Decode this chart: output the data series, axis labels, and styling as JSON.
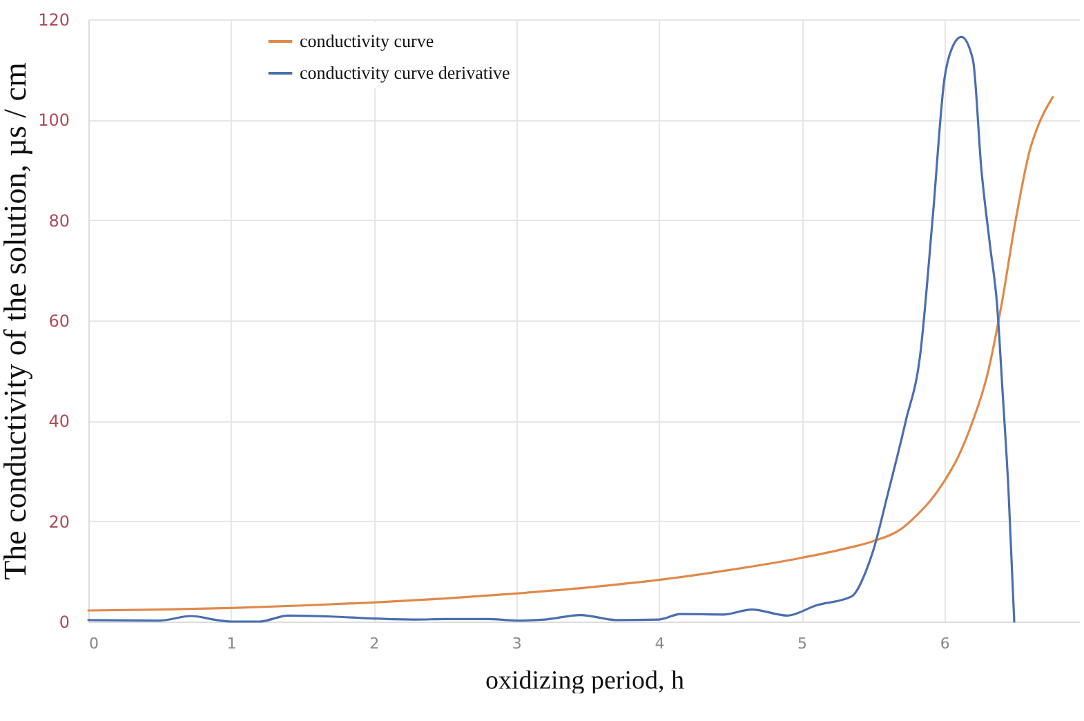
{
  "chart_data": {
    "type": "line",
    "xlabel": "oxidizing period, h",
    "ylabel": "The conductivity of the solution, µs / cm",
    "xlim": [
      0,
      6.95
    ],
    "xticks": [
      0,
      1,
      2,
      3,
      4,
      5,
      6
    ],
    "ylim": [
      0,
      120
    ],
    "yticks": [
      0,
      20,
      40,
      60,
      80,
      100,
      120
    ],
    "grid": true,
    "legend": "top left",
    "marker": "none",
    "line_style": "solid",
    "series": [
      {
        "name": "conductivity curve",
        "color": "#e0894a",
        "x": [
          0,
          0.5,
          1,
          1.5,
          2,
          2.5,
          3,
          3.5,
          4,
          4.5,
          5,
          5.3,
          5.5,
          5.7,
          5.8,
          5.9,
          6,
          6.1,
          6.2,
          6.3,
          6.4,
          6.5,
          6.6,
          6.66,
          6.76
        ],
        "values": [
          2.2,
          2.4,
          2.7,
          3.2,
          3.8,
          4.6,
          5.6,
          6.8,
          8.3,
          10.3,
          12.7,
          14.5,
          16,
          18.5,
          21,
          24,
          28,
          33,
          40,
          49,
          63,
          80,
          94,
          99,
          104.5
        ]
      },
      {
        "name": "conductivity curve derivative",
        "color": "#4a6fb0",
        "x": [
          0,
          0.5,
          0.72,
          0.9,
          1,
          1.2,
          1.4,
          1.7,
          2,
          2.3,
          2.5,
          2.8,
          3,
          3.2,
          3.45,
          3.7,
          4,
          4.15,
          4.45,
          4.65,
          4.9,
          5.1,
          5.35,
          5.45,
          5.5,
          5.6,
          5.73,
          5.83,
          5.92,
          6,
          6.05,
          6.12,
          6.2,
          6.26,
          6.32,
          6.37,
          6.41,
          6.45,
          6.49
        ],
        "values": [
          0.3,
          0.2,
          1.1,
          0.3,
          0,
          0,
          1.2,
          1,
          0.6,
          0.4,
          0.5,
          0.5,
          0.2,
          0.4,
          1.3,
          0.3,
          0.4,
          1.5,
          1.4,
          2.4,
          1.2,
          3.2,
          5,
          10,
          14,
          25,
          40,
          53,
          81,
          108,
          114,
          116.5,
          112,
          90,
          75,
          63,
          45,
          26,
          0
        ]
      }
    ]
  }
}
